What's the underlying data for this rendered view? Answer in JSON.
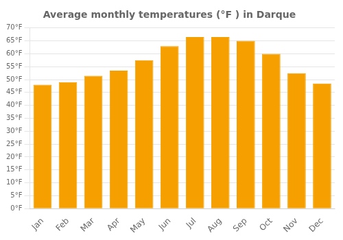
{
  "chart_data": {
    "type": "bar",
    "title": "Average monthly temperatures (°F ) in Darque",
    "categories": [
      "Jan",
      "Feb",
      "Mar",
      "Apr",
      "May",
      "Jun",
      "Jul",
      "Aug",
      "Sep",
      "Oct",
      "Nov",
      "Dec"
    ],
    "values": [
      48,
      49,
      51.5,
      53.5,
      57.5,
      63,
      66.5,
      66.5,
      65,
      60,
      52.5,
      48.5
    ],
    "color": "#F5A000",
    "ylim": [
      0,
      70
    ],
    "yticks": [
      {
        "value": 0,
        "label": "0°F"
      },
      {
        "value": 5,
        "label": "5°F"
      },
      {
        "value": 10,
        "label": "10°F"
      },
      {
        "value": 15,
        "label": "15°F"
      },
      {
        "value": 20,
        "label": "20°F"
      },
      {
        "value": 25,
        "label": "25°F"
      },
      {
        "value": 30,
        "label": "30°F"
      },
      {
        "value": 35,
        "label": "35°F"
      },
      {
        "value": 40,
        "label": "40°F"
      },
      {
        "value": 45,
        "label": "45°F"
      },
      {
        "value": 50,
        "label": "50°F"
      },
      {
        "value": 55,
        "label": "55°F"
      },
      {
        "value": 60,
        "label": "60°F"
      },
      {
        "value": 65,
        "label": "65°F"
      },
      {
        "value": 70,
        "label": "70°F"
      }
    ],
    "grid": true
  }
}
